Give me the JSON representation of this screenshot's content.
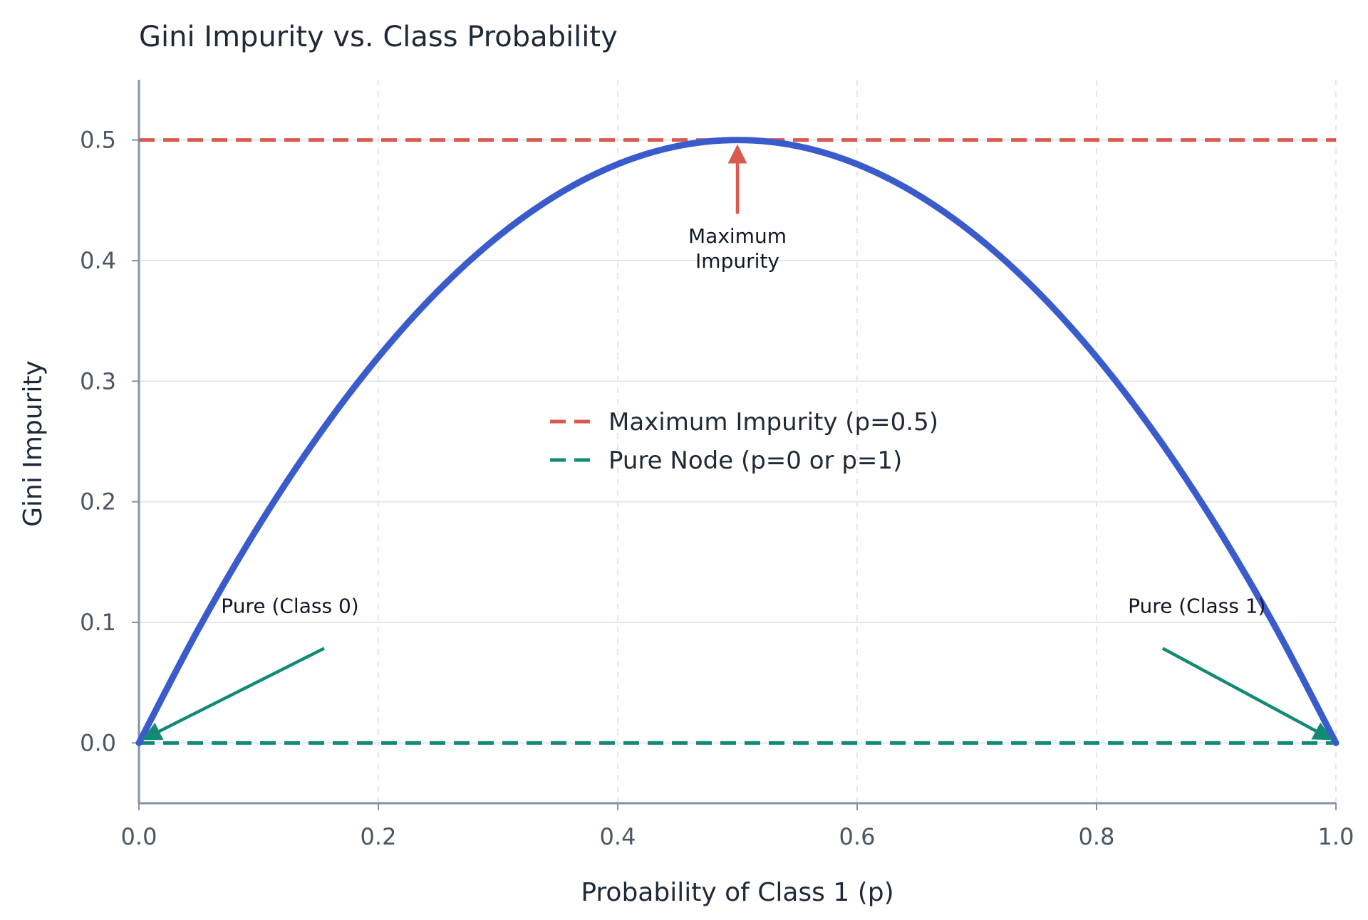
{
  "chart_data": {
    "type": "line",
    "title": "Gini Impurity vs. Class Probability",
    "xlabel": "Probability of Class 1 (p)",
    "ylabel": "Gini Impurity",
    "xlim": [
      0.0,
      1.0
    ],
    "ylim": [
      -0.05,
      0.55
    ],
    "x_ticks": [
      0.0,
      0.2,
      0.4,
      0.6,
      0.8,
      1.0
    ],
    "x_tick_labels": [
      "0.0",
      "0.2",
      "0.4",
      "0.6",
      "0.8",
      "1.0"
    ],
    "y_ticks": [
      0.0,
      0.1,
      0.2,
      0.3,
      0.4,
      0.5
    ],
    "y_tick_labels": [
      "0.0",
      "0.1",
      "0.2",
      "0.3",
      "0.4",
      "0.5"
    ],
    "grid": true,
    "series": [
      {
        "color": "#3a5bcc",
        "x": [
          0.0,
          0.05,
          0.1,
          0.15,
          0.2,
          0.25,
          0.3,
          0.35,
          0.4,
          0.45,
          0.5,
          0.55,
          0.6,
          0.65,
          0.7,
          0.75,
          0.8,
          0.85,
          0.9,
          0.95,
          1.0
        ],
        "y": [
          0.0,
          0.095,
          0.18,
          0.255,
          0.32,
          0.375,
          0.42,
          0.455,
          0.48,
          0.495,
          0.5,
          0.495,
          0.48,
          0.455,
          0.42,
          0.375,
          0.32,
          0.255,
          0.18,
          0.095,
          0.0
        ]
      }
    ],
    "reference_lines": [
      {
        "name": "Maximum Impurity (p=0.5)",
        "y": 0.5,
        "color": "#d95a4f",
        "style": "dashed"
      },
      {
        "name": "Pure Node (p=0 or p=1)",
        "y": 0.0,
        "color": "#128a74",
        "style": "dashed"
      }
    ],
    "legend": {
      "placement": "center",
      "entries": [
        "Maximum Impurity (p=0.5)",
        "Pure Node (p=0 or p=1)"
      ]
    },
    "annotations": [
      {
        "lines": [
          "Maximum",
          "Impurity"
        ],
        "xy": [
          0.5,
          0.5
        ],
        "text_xy": [
          0.5,
          0.43
        ],
        "color": "#d95a4f"
      },
      {
        "lines": [
          "Pure (Class 0)"
        ],
        "xy": [
          0.0,
          0.0
        ],
        "text_xy": [
          0.15,
          0.095
        ],
        "color": "#128a74"
      },
      {
        "lines": [
          "Pure (Class 1)"
        ],
        "xy": [
          1.0,
          0.0
        ],
        "text_xy": [
          0.86,
          0.095
        ],
        "color": "#128a74"
      }
    ]
  }
}
